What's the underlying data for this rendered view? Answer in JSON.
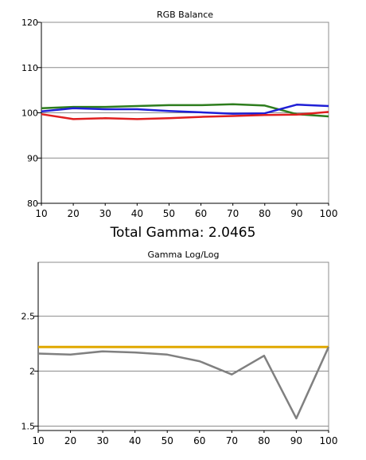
{
  "summary": {
    "total_gamma": "Total Gamma: 2.0465"
  },
  "chart_data": [
    {
      "type": "line",
      "title": "RGB Balance",
      "xlabel": "",
      "ylabel": "",
      "x": [
        10,
        20,
        30,
        40,
        50,
        60,
        70,
        80,
        90,
        100
      ],
      "xlim": [
        10,
        100
      ],
      "ylim": [
        80,
        120
      ],
      "xticks": [
        "10",
        "20",
        "30",
        "40",
        "50",
        "60",
        "70",
        "80",
        "90",
        "100"
      ],
      "yticks": [
        "80",
        "90",
        "100",
        "110",
        "120"
      ],
      "grid": "horizontal",
      "legend": "none",
      "series": [
        {
          "color": "#2e7d1e",
          "values": [
            101.0,
            101.3,
            101.3,
            101.5,
            101.7,
            101.7,
            101.9,
            101.6,
            99.7,
            99.2
          ]
        },
        {
          "color": "#1f1fd6",
          "values": [
            100.3,
            101.0,
            100.8,
            100.8,
            100.4,
            100.1,
            99.8,
            99.9,
            101.8,
            101.5
          ]
        },
        {
          "color": "#e02020",
          "values": [
            99.7,
            98.6,
            98.8,
            98.6,
            98.8,
            99.1,
            99.3,
            99.5,
            99.6,
            100.2
          ]
        }
      ]
    },
    {
      "type": "line",
      "title": "Gamma Log/Log",
      "xlabel": "",
      "ylabel": "",
      "x": [
        10,
        20,
        30,
        40,
        50,
        60,
        70,
        80,
        90,
        100
      ],
      "xlim": [
        10,
        100
      ],
      "ylim": [
        1.46,
        2.99
      ],
      "xticks": [
        "10",
        "20",
        "30",
        "40",
        "50",
        "60",
        "70",
        "80",
        "90",
        "100"
      ],
      "yticks": [
        "1.5",
        "2",
        "2.5"
      ],
      "grid": "horizontal",
      "legend": "none",
      "series": [
        {
          "color": "#e0a800",
          "values": [
            2.22,
            2.22,
            2.22,
            2.22,
            2.22,
            2.22,
            2.22,
            2.22,
            2.22,
            2.22
          ]
        },
        {
          "color": "#808080",
          "values": [
            2.16,
            2.15,
            2.18,
            2.17,
            2.15,
            2.09,
            1.97,
            2.14,
            1.57,
            2.22
          ]
        }
      ]
    }
  ]
}
